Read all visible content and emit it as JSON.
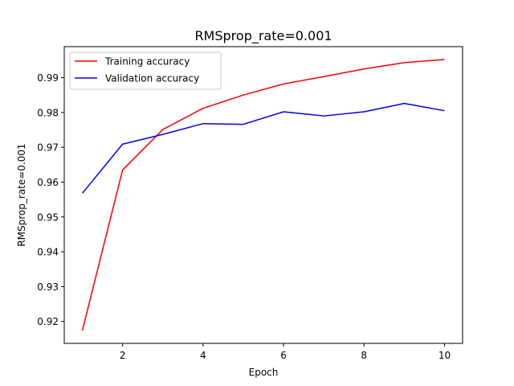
{
  "chart_data": {
    "type": "line",
    "title": "RMSprop_rate=0.001",
    "xlabel": "Epoch",
    "ylabel": "RMSprop_rate=0.001",
    "x": [
      1,
      2,
      3,
      4,
      5,
      6,
      7,
      8,
      9,
      10
    ],
    "xlim": [
      0.55,
      10.45
    ],
    "ylim": [
      0.9137,
      0.9989
    ],
    "xticks": [
      2,
      4,
      6,
      8,
      10
    ],
    "yticks": [
      0.92,
      0.93,
      0.94,
      0.95,
      0.96,
      0.97,
      0.98,
      0.99
    ],
    "xtick_labels": [
      "2",
      "4",
      "6",
      "8",
      "10"
    ],
    "ytick_labels": [
      "0.92",
      "0.93",
      "0.94",
      "0.95",
      "0.96",
      "0.97",
      "0.98",
      "0.99"
    ],
    "grid": false,
    "legend_position": "top-left",
    "series": [
      {
        "name": "Training accuracy",
        "color": "#ff0000",
        "values": [
          0.9174,
          0.9635,
          0.9751,
          0.9812,
          0.985,
          0.9882,
          0.9903,
          0.9925,
          0.9943,
          0.9952
        ]
      },
      {
        "name": "Validation accuracy",
        "color": "#0000ff",
        "values": [
          0.9568,
          0.9709,
          0.9737,
          0.9768,
          0.9766,
          0.9802,
          0.979,
          0.9802,
          0.9826,
          0.9805
        ]
      }
    ]
  }
}
